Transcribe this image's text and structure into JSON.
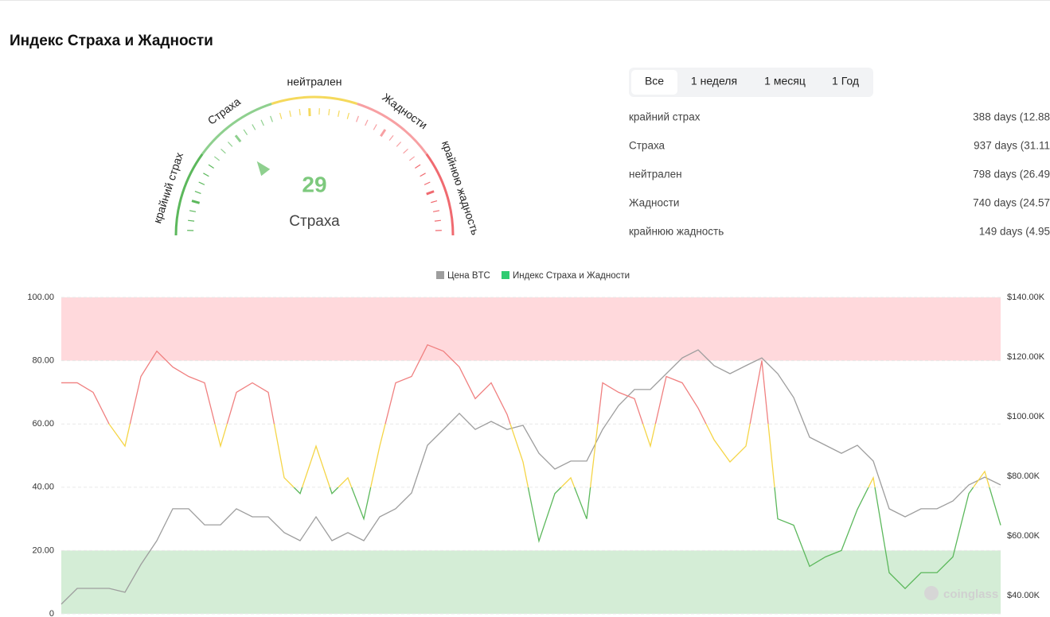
{
  "header": {
    "title": "Индекс Страха и Жадности"
  },
  "gauge": {
    "range": [
      0,
      100
    ],
    "value": 29,
    "label": "Страха",
    "value_color": "#7dc97d",
    "zones": [
      {
        "label": "крайний страх",
        "from": 0,
        "to": 20,
        "color": "#5cb85c"
      },
      {
        "label": "Страха",
        "from": 20,
        "to": 40,
        "color": "#8fd08f"
      },
      {
        "label": "нейтрален",
        "from": 40,
        "to": 60,
        "color": "#f5d95c"
      },
      {
        "label": "Жадности",
        "from": 60,
        "to": 80,
        "color": "#f7a0a3"
      },
      {
        "label": "крайнюю жадность",
        "from": 80,
        "to": 100,
        "color": "#f06a70"
      }
    ]
  },
  "tabs": {
    "items": [
      "Все",
      "1 неделя",
      "1 месяц",
      "1 Год"
    ],
    "active": 0
  },
  "stats": [
    {
      "name": "крайний страх",
      "value": "388 days (12.88"
    },
    {
      "name": "Страха",
      "value": "937 days (31.11"
    },
    {
      "name": "нейтрален",
      "value": "798 days (26.49"
    },
    {
      "name": "Жадности",
      "value": "740 days (24.57"
    },
    {
      "name": "крайнюю жадность",
      "value": "149 days (4.95"
    }
  ],
  "watermark": "coinglass",
  "chart_data": {
    "type": "line",
    "ylim": [
      0,
      100
    ],
    "yticks": [
      0,
      {
        "value": 20,
        "label": "20.00"
      },
      {
        "value": 40,
        "label": "40.00"
      },
      {
        "value": 60,
        "label": "60.00"
      },
      {
        "value": 80,
        "label": "80.00"
      },
      {
        "value": 100,
        "label": "100.00"
      }
    ],
    "y2lim": [
      33867,
      140000
    ],
    "y2ticks": [
      {
        "value": 40000,
        "label": "$40.00K"
      },
      {
        "value": 60000,
        "label": "$60.00K"
      },
      {
        "value": 80000,
        "label": "$80.00K"
      },
      {
        "value": 100000,
        "label": "$100.00K"
      },
      {
        "value": 120000,
        "label": "$120.00K"
      },
      {
        "value": 140000,
        "label": "$140.00K"
      }
    ],
    "grid": true,
    "bands": [
      {
        "from": 80,
        "to": 100,
        "color": "#ffd9dc"
      },
      {
        "from": 0,
        "to": 20,
        "color": "#d4edd6"
      }
    ],
    "line_colors": [
      {
        "above": 60,
        "color": "#f08080"
      },
      {
        "above": 40,
        "color": "#f5d547"
      },
      {
        "above": 0,
        "color": "#5cb85c"
      }
    ],
    "series": [
      {
        "name": "Цена BTC",
        "color": "#9e9e9e",
        "axis": "y2",
        "values": [
          37100,
          42400,
          42400,
          42400,
          41100,
          50400,
          58400,
          69100,
          69100,
          63700,
          63700,
          69100,
          66400,
          66400,
          61100,
          58400,
          66400,
          58400,
          61100,
          58400,
          66400,
          69100,
          74400,
          90400,
          95700,
          101100,
          95700,
          98400,
          95700,
          97100,
          87700,
          82400,
          85100,
          85100,
          95700,
          103700,
          109100,
          109100,
          114400,
          119700,
          122400,
          117100,
          114400,
          117100,
          119700,
          114400,
          106400,
          93100,
          90400,
          87700,
          90400,
          85100,
          69100,
          66400,
          69100,
          69100,
          71700,
          77100,
          79700,
          77100
        ]
      },
      {
        "name": "Индекс Страха и Жадности",
        "color": "#2ecc71",
        "values": [
          73,
          73,
          70,
          60,
          53,
          75,
          83,
          78,
          75,
          73,
          53,
          70,
          73,
          70,
          43,
          38,
          53,
          38,
          43,
          30,
          53,
          73,
          75,
          85,
          83,
          78,
          68,
          73,
          63,
          48,
          23,
          38,
          43,
          30,
          73,
          70,
          68,
          53,
          75,
          73,
          65,
          55,
          48,
          53,
          80,
          30,
          28,
          15,
          18,
          20,
          33,
          43,
          13,
          8,
          13,
          13,
          18,
          38,
          45,
          28
        ]
      }
    ]
  }
}
